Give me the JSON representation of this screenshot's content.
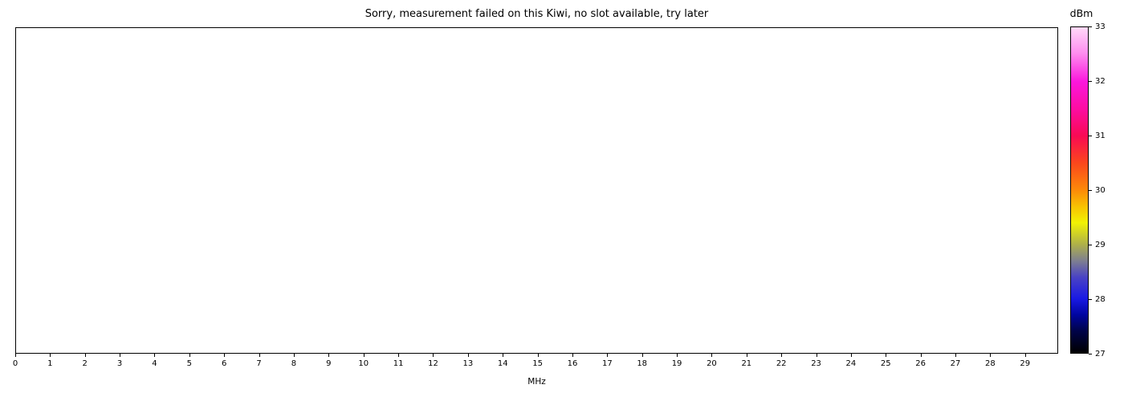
{
  "figure_title": "Sorry, measurement failed on this Kiwi, no slot available, try later",
  "chart_data": {
    "type": "heatmap",
    "title": "Sorry, measurement failed on this Kiwi, no slot available, try later",
    "xlabel": "MHz",
    "ylabel": "",
    "xlim": [
      0,
      30
    ],
    "x_ticks": [
      "0",
      "1",
      "2",
      "3",
      "4",
      "5",
      "6",
      "7",
      "8",
      "9",
      "10",
      "11",
      "12",
      "13",
      "14",
      "15",
      "16",
      "17",
      "18",
      "19",
      "20",
      "21",
      "22",
      "23",
      "24",
      "25",
      "26",
      "27",
      "28",
      "29"
    ],
    "series": [],
    "values": [],
    "grid": false,
    "plot_area_empty": true,
    "colorbar": {
      "label": "dBm",
      "min": 27,
      "max": 33,
      "ticks": [
        "27",
        "28",
        "29",
        "30",
        "31",
        "32",
        "33"
      ],
      "gradient_stops_top_to_bottom": [
        {
          "pos": 0,
          "color": "#ffd9f8"
        },
        {
          "pos": 8,
          "color": "#fe8def"
        },
        {
          "pos": 16.7,
          "color": "#fb17dc"
        },
        {
          "pos": 25,
          "color": "#fd0da2"
        },
        {
          "pos": 33.3,
          "color": "#f90a54"
        },
        {
          "pos": 41.7,
          "color": "#fb471c"
        },
        {
          "pos": 50,
          "color": "#fc8a09"
        },
        {
          "pos": 55,
          "color": "#f8c102"
        },
        {
          "pos": 60,
          "color": "#f1f203"
        },
        {
          "pos": 66.7,
          "color": "#aeb04a"
        },
        {
          "pos": 71.7,
          "color": "#7e7f90"
        },
        {
          "pos": 76.7,
          "color": "#4a43c4"
        },
        {
          "pos": 83.3,
          "color": "#1a1ae4"
        },
        {
          "pos": 88.3,
          "color": "#0005a0"
        },
        {
          "pos": 93.3,
          "color": "#000348"
        },
        {
          "pos": 100,
          "color": "#000000"
        }
      ]
    },
    "text_color": "#000000",
    "background_color": "#ffffff"
  }
}
